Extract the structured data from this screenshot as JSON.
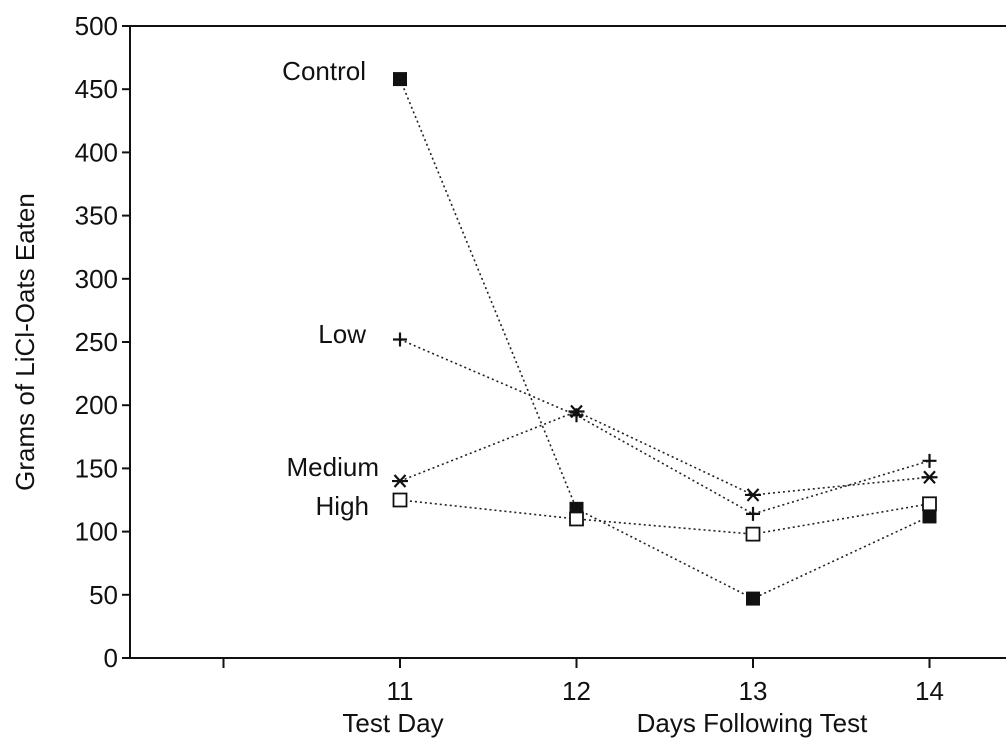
{
  "chart_data": {
    "type": "line",
    "ylabel": "Grams of LiCl-Oats Eaten",
    "ylim": [
      0,
      500
    ],
    "yticks": [
      "0",
      "50",
      "100",
      "150",
      "200",
      "250",
      "300",
      "350",
      "400",
      "450",
      "500"
    ],
    "x_categories": [
      11,
      12,
      13,
      14
    ],
    "xtick_labels": [
      "11",
      "12",
      "13",
      "14"
    ],
    "x_sub_labels": [
      "Test Day",
      "Days Following Test"
    ],
    "grid": false,
    "series": [
      {
        "name": "Control",
        "marker": "filled-square",
        "values": [
          458,
          118,
          47,
          112
        ]
      },
      {
        "name": "Low",
        "marker": "plus",
        "values": [
          252,
          192,
          114,
          156
        ]
      },
      {
        "name": "Medium",
        "marker": "asterisk",
        "values": [
          140,
          195,
          129,
          143
        ]
      },
      {
        "name": "High",
        "marker": "open-square",
        "values": [
          125,
          110,
          98,
          122
        ]
      }
    ]
  }
}
